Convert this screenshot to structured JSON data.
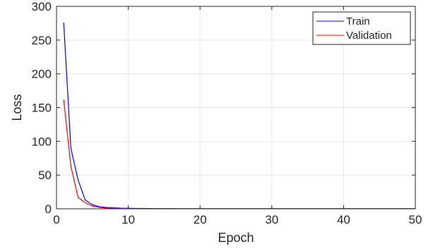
{
  "chart_data": {
    "type": "line",
    "title": "",
    "xlabel": "Epoch",
    "ylabel": "Loss",
    "xlim": [
      0,
      50
    ],
    "ylim": [
      0,
      300
    ],
    "xticks": [
      0,
      10,
      20,
      30,
      40,
      50
    ],
    "yticks": [
      0,
      50,
      100,
      150,
      200,
      250,
      300
    ],
    "grid": true,
    "legend_position": "top-right",
    "series": [
      {
        "name": "Train",
        "color": "#0000ff",
        "x": [
          1,
          2,
          3,
          4,
          5,
          6,
          7,
          8,
          9,
          10,
          11,
          12,
          13,
          14,
          15,
          16,
          17,
          18,
          19,
          20,
          21,
          22,
          23,
          24,
          25,
          26,
          27,
          28,
          29,
          30,
          31,
          32,
          33,
          34,
          35,
          36,
          37,
          38,
          39,
          40,
          41,
          42,
          43,
          44,
          45,
          46,
          47,
          48,
          49,
          50
        ],
        "values": [
          276,
          90,
          43,
          13,
          6,
          3,
          2,
          1.5,
          1,
          0.8,
          0.6,
          0.5,
          0.4,
          0.3,
          0.3,
          0.3,
          0.2,
          0.2,
          0.2,
          0.2,
          0.2,
          0.2,
          0.2,
          0.2,
          0.2,
          0.2,
          0.2,
          0.2,
          0.2,
          0.2,
          0.2,
          0.2,
          0.2,
          0.2,
          0.2,
          0.2,
          0.2,
          0.2,
          0.2,
          0.2,
          0.2,
          0.2,
          0.2,
          0.2,
          0.2,
          0.2,
          0.2,
          0.2,
          0.2,
          0.2
        ]
      },
      {
        "name": "Validation",
        "color": "#ff0000",
        "x": [
          1,
          2,
          3,
          4,
          5,
          6,
          7,
          8,
          9,
          10,
          11,
          12,
          13,
          14,
          15,
          16,
          17,
          18,
          19,
          20,
          21,
          22,
          23,
          24,
          25,
          26,
          27,
          28,
          29,
          30,
          31,
          32,
          33,
          34,
          35,
          36,
          37,
          38,
          39,
          40,
          41,
          42,
          43,
          44,
          45,
          46,
          47,
          48,
          49,
          50
        ],
        "values": [
          162,
          63,
          17,
          9,
          4,
          2,
          1,
          0.8,
          0.6,
          0.4,
          0.3,
          0.3,
          0.2,
          0.2,
          0.2,
          0.2,
          0.2,
          0.2,
          0.2,
          0.2,
          0.2,
          0.2,
          0.2,
          0.2,
          0.2,
          0.2,
          0.2,
          0.2,
          0.2,
          0.2,
          0.2,
          0.2,
          0.2,
          0.2,
          0.2,
          0.2,
          0.2,
          0.2,
          0.2,
          0.2,
          0.2,
          0.2,
          0.2,
          0.2,
          0.2,
          0.2,
          0.2,
          0.2,
          0.2,
          0.2
        ]
      }
    ]
  }
}
